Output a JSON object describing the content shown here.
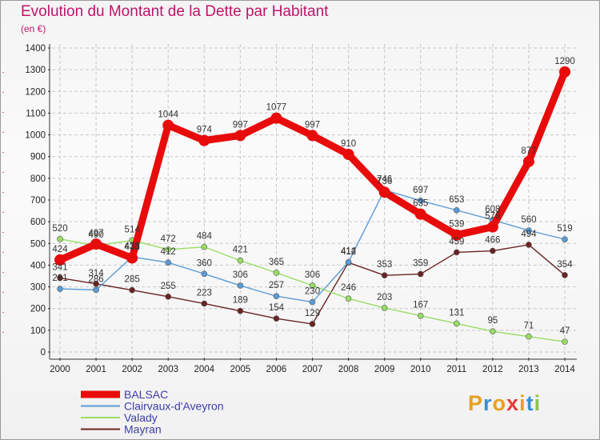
{
  "chart_data": {
    "type": "line",
    "title": "Evolution du Montant de la Dette par Habitant",
    "subtitle": "(en €)",
    "ylim": [
      0,
      1400
    ],
    "yticks": [
      0,
      100,
      200,
      300,
      400,
      500,
      600,
      700,
      800,
      900,
      1000,
      1100,
      1200,
      1300,
      1400
    ],
    "x": [
      "2000",
      "2001",
      "2002",
      "2003",
      "2004",
      "2005",
      "2006",
      "2007",
      "2008",
      "2009",
      "2010",
      "2011",
      "2012",
      "2013",
      "2014"
    ],
    "grid": true,
    "legend_position": "bottom-left",
    "series": [
      {
        "name": "BALSAC",
        "color": "#e80b0b",
        "values": [
          424,
          497,
          433,
          1044,
          974,
          997,
          1077,
          997,
          910,
          736,
          635,
          539,
          576,
          877,
          1290
        ]
      },
      {
        "name": "Clairvaux-d'Aveyron",
        "color": "#5a9bd5",
        "values": [
          291,
          286,
          438,
          412,
          360,
          306,
          257,
          230,
          414,
          746,
          697,
          653,
          608,
          560,
          519
        ]
      },
      {
        "name": "Valady",
        "color": "#99dd66",
        "values": [
          520,
          490,
          514,
          472,
          484,
          421,
          365,
          306,
          246,
          203,
          167,
          131,
          95,
          71,
          47
        ]
      },
      {
        "name": "Mayran",
        "color": "#6b2323",
        "values": [
          341,
          314,
          285,
          255,
          223,
          189,
          154,
          129,
          412,
          353,
          359,
          459,
          466,
          494,
          354
        ]
      }
    ],
    "data_labels": {
      "BALSAC": [
        "424",
        "497",
        "433",
        "1044",
        "974",
        "997",
        "1077",
        "997",
        "910",
        "736",
        "635",
        "539",
        "576",
        "877",
        "1290"
      ],
      "Clairvaux-d'Aveyron": [
        "291",
        "286",
        "438",
        "412",
        "360",
        "306",
        "257",
        "230",
        "414",
        "746",
        "697",
        "653",
        "608",
        "560",
        "519"
      ],
      "Valady": [
        "520",
        "490",
        "514",
        "472",
        "484",
        "421",
        "365",
        "306",
        "246",
        "203",
        "167",
        "131",
        "95",
        "71",
        "47"
      ],
      "Mayran": [
        "341",
        "314",
        "285",
        "255",
        "223",
        "189",
        "154",
        "129",
        "412",
        "353",
        "359",
        "459",
        "466",
        "494",
        "354"
      ]
    }
  },
  "logo": {
    "text": "Proxiti",
    "letters": [
      "P",
      "r",
      "o",
      "x",
      "i",
      "t",
      "i"
    ],
    "colors": [
      "#e8a020",
      "#3a8fd0",
      "#e8a020",
      "#e83a3a",
      "#e8a020",
      "#3a8fd0",
      "#8bc34a"
    ]
  }
}
